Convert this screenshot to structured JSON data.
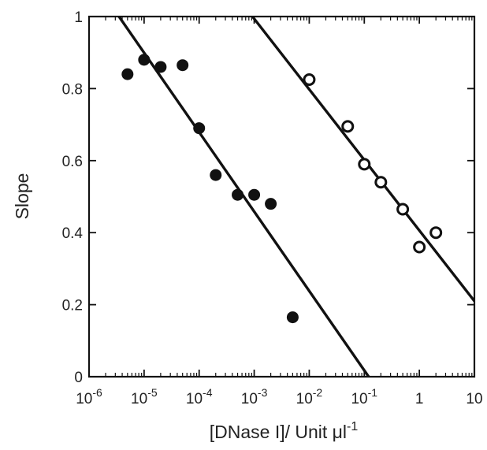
{
  "chart_data": {
    "type": "scatter",
    "title": "",
    "xlabel": "[DNase I]/ Unit μl",
    "xlabel_exponent": "-1",
    "ylabel": "Slope",
    "xscale": "log",
    "xlim": [
      1e-06,
      10
    ],
    "ylim": [
      0,
      1
    ],
    "x_ticks": [
      {
        "value": 1e-06,
        "base": "10",
        "exp": "-6"
      },
      {
        "value": 1e-05,
        "base": "10",
        "exp": "-5"
      },
      {
        "value": 0.0001,
        "base": "10",
        "exp": "-4"
      },
      {
        "value": 0.001,
        "base": "10",
        "exp": "-3"
      },
      {
        "value": 0.01,
        "base": "10",
        "exp": "-2"
      },
      {
        "value": 0.1,
        "base": "10",
        "exp": "-1"
      },
      {
        "value": 1,
        "base": "1",
        "exp": ""
      },
      {
        "value": 10,
        "base": "10",
        "exp": ""
      }
    ],
    "y_ticks": [
      {
        "value": 0,
        "label": "0"
      },
      {
        "value": 0.2,
        "label": "0.2"
      },
      {
        "value": 0.4,
        "label": "0.4"
      },
      {
        "value": 0.6,
        "label": "0.6"
      },
      {
        "value": 0.8,
        "label": "0.8"
      },
      {
        "value": 1,
        "label": "1"
      }
    ],
    "grid": false,
    "series": [
      {
        "marker": "filled-circle",
        "color": "#111111",
        "x": [
          5e-06,
          1e-05,
          2e-05,
          5e-05,
          0.0001,
          0.0002,
          0.0005,
          0.001,
          0.002,
          0.005
        ],
        "y": [
          0.84,
          0.88,
          0.86,
          0.865,
          0.69,
          0.56,
          0.505,
          0.505,
          0.48,
          0.165
        ],
        "fit_line": {
          "x": [
            3.5e-06,
            0.12
          ],
          "y": [
            1.0,
            0.0
          ]
        }
      },
      {
        "marker": "open-circle",
        "color": "#111111",
        "x": [
          0.01,
          0.05,
          0.1,
          0.2,
          0.5,
          1,
          2
        ],
        "y": [
          0.825,
          0.695,
          0.59,
          0.54,
          0.465,
          0.36,
          0.4
        ],
        "fit_line": {
          "x": [
            0.00093,
            10
          ],
          "y": [
            1.0,
            0.21
          ]
        }
      }
    ]
  }
}
